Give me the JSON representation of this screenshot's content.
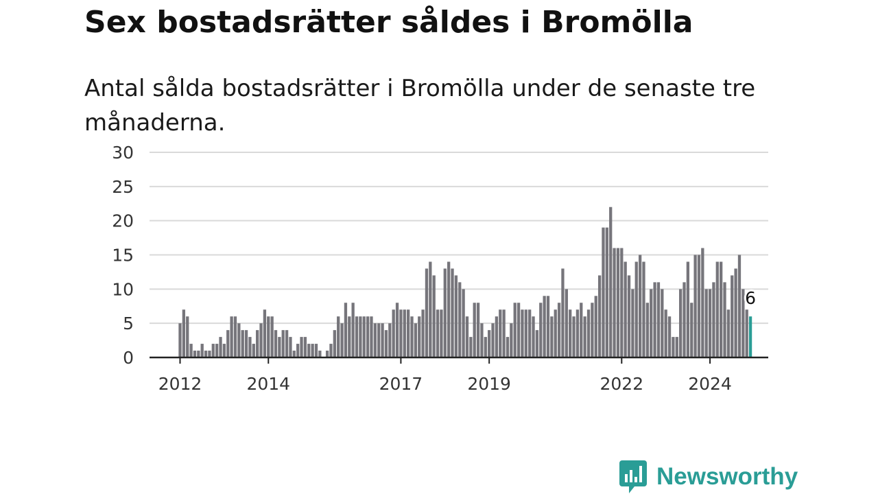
{
  "title": "Sex bostadsrätter såldes i Bromölla",
  "subtitle": "Antal sålda bostadsrätter i Bromölla under de senaste tre månaderna.",
  "brand": {
    "name": "Newsworthy"
  },
  "colors": {
    "bar": "#76757b",
    "highlight": "#2a9d96",
    "grid": "#d9d9d9",
    "axis": "#222222"
  },
  "chart_data": {
    "type": "bar",
    "title": "Sex bostadsrätter såldes i Bromölla",
    "subtitle": "Antal sålda bostadsrätter i Bromölla under de senaste tre månaderna.",
    "xlabel": "",
    "ylabel": "",
    "ylim": [
      0,
      30
    ],
    "yticks": [
      0,
      5,
      10,
      15,
      20,
      25,
      30
    ],
    "xticks": [
      "2012",
      "2014",
      "2017",
      "2019",
      "2022",
      "2024"
    ],
    "grid": true,
    "start": "2012-01",
    "frequency": "monthly",
    "highlight_last": true,
    "last_value_label": "6",
    "values": [
      5,
      7,
      6,
      2,
      1,
      1,
      2,
      1,
      1,
      2,
      2,
      3,
      2,
      4,
      6,
      6,
      5,
      4,
      4,
      3,
      2,
      4,
      5,
      7,
      6,
      6,
      4,
      3,
      4,
      4,
      3,
      1,
      2,
      3,
      3,
      2,
      2,
      2,
      1,
      0,
      1,
      2,
      4,
      6,
      5,
      8,
      6,
      8,
      6,
      6,
      6,
      6,
      6,
      5,
      5,
      5,
      4,
      5,
      7,
      8,
      7,
      7,
      7,
      6,
      5,
      6,
      7,
      13,
      14,
      12,
      7,
      7,
      13,
      14,
      13,
      12,
      11,
      10,
      6,
      3,
      8,
      8,
      5,
      3,
      4,
      5,
      6,
      7,
      7,
      3,
      5,
      8,
      8,
      7,
      7,
      7,
      6,
      4,
      8,
      9,
      9,
      6,
      7,
      8,
      13,
      10,
      7,
      6,
      7,
      8,
      6,
      7,
      8,
      9,
      12,
      19,
      19,
      22,
      16,
      16,
      16,
      14,
      12,
      10,
      14,
      15,
      14,
      8,
      10,
      11,
      11,
      10,
      7,
      6,
      3,
      3,
      10,
      11,
      14,
      8,
      15,
      15,
      16,
      10,
      10,
      11,
      14,
      14,
      11,
      7,
      12,
      13,
      15,
      10,
      7,
      6
    ]
  }
}
